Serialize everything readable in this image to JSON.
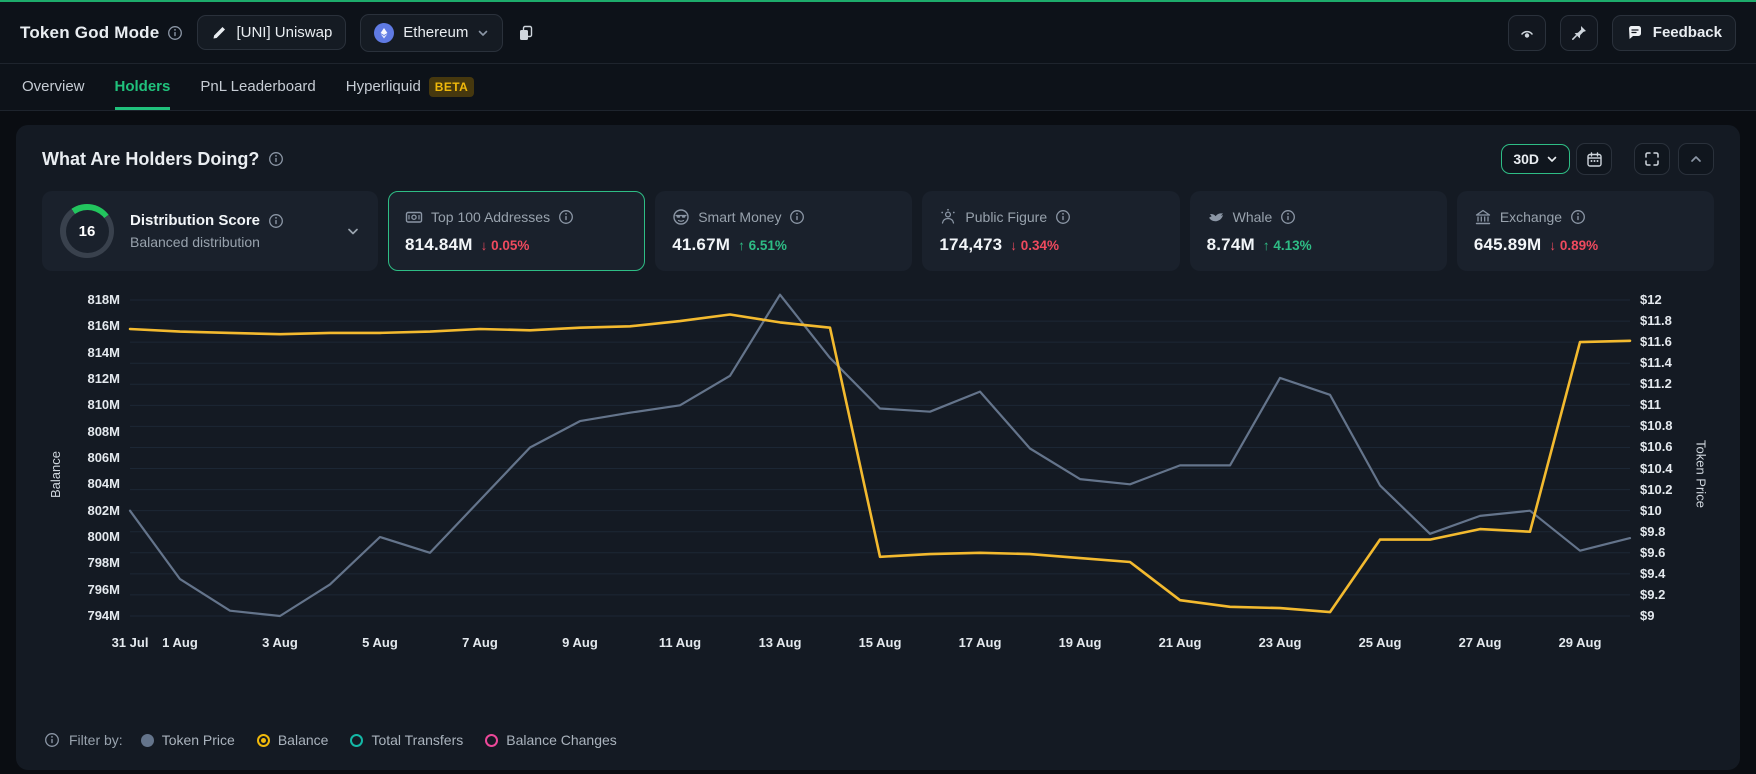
{
  "header": {
    "title": "Token God Mode",
    "token_button": "[UNI] Uniswap",
    "chain_button": "Ethereum",
    "feedback_label": "Feedback"
  },
  "tabs": [
    {
      "label": "Overview",
      "active": false,
      "badge": ""
    },
    {
      "label": "Holders",
      "active": true,
      "badge": ""
    },
    {
      "label": "PnL Leaderboard",
      "active": false,
      "badge": ""
    },
    {
      "label": "Hyperliquid",
      "active": false,
      "badge": "BETA"
    }
  ],
  "panel": {
    "title": "What Are Holders Doing?",
    "range_selector": "30D"
  },
  "stats": {
    "distribution": {
      "score": "16",
      "label": "Distribution Score",
      "sub": "Balanced distribution"
    },
    "cards": [
      {
        "icon": "wallet-icon",
        "label": "Top 100 Addresses",
        "value": "814.84M",
        "change": "0.05%",
        "direction": "down",
        "selected": true
      },
      {
        "icon": "smart-money-icon",
        "label": "Smart Money",
        "value": "41.67M",
        "change": "6.51%",
        "direction": "up",
        "selected": false
      },
      {
        "icon": "public-figure-icon",
        "label": "Public Figure",
        "value": "174,473",
        "change": "0.34%",
        "direction": "down",
        "selected": false
      },
      {
        "icon": "whale-icon",
        "label": "Whale",
        "value": "8.74M",
        "change": "4.13%",
        "direction": "up",
        "selected": false
      },
      {
        "icon": "exchange-icon",
        "label": "Exchange",
        "value": "645.89M",
        "change": "0.89%",
        "direction": "down",
        "selected": false
      }
    ]
  },
  "chart_data": {
    "type": "line",
    "x": [
      "31 Jul",
      "1 Aug",
      "2 Aug",
      "3 Aug",
      "4 Aug",
      "5 Aug",
      "6 Aug",
      "7 Aug",
      "8 Aug",
      "9 Aug",
      "10 Aug",
      "11 Aug",
      "12 Aug",
      "13 Aug",
      "14 Aug",
      "15 Aug",
      "16 Aug",
      "17 Aug",
      "18 Aug",
      "19 Aug",
      "20 Aug",
      "21 Aug",
      "22 Aug",
      "23 Aug",
      "24 Aug",
      "25 Aug",
      "26 Aug",
      "27 Aug",
      "28 Aug",
      "29 Aug",
      "30 Aug"
    ],
    "x_tick_indices": [
      0,
      1,
      3,
      5,
      7,
      9,
      11,
      13,
      15,
      17,
      19,
      21,
      23,
      25,
      27,
      29
    ],
    "x_tick_labels": [
      "31 Jul",
      "1 Aug",
      "3 Aug",
      "5 Aug",
      "7 Aug",
      "9 Aug",
      "11 Aug",
      "13 Aug",
      "15 Aug",
      "17 Aug",
      "19 Aug",
      "21 Aug",
      "23 Aug",
      "25 Aug",
      "27 Aug",
      "29 Aug"
    ],
    "left_axis": {
      "label": "Balance",
      "min": 794,
      "max": 818,
      "ticks": [
        "818M",
        "816M",
        "814M",
        "812M",
        "810M",
        "808M",
        "806M",
        "804M",
        "802M",
        "800M",
        "798M",
        "796M",
        "794M"
      ]
    },
    "right_axis": {
      "label": "Token Price",
      "min": 9,
      "max": 12,
      "ticks": [
        "$12",
        "$11.8",
        "$11.6",
        "$11.4",
        "$11.2",
        "$11",
        "$10.8",
        "$10.6",
        "$10.4",
        "$10.2",
        "$10",
        "$9.8",
        "$9.6",
        "$9.4",
        "$9.2",
        "$9"
      ]
    },
    "grid": true,
    "series": [
      {
        "name": "Token Price",
        "axis": "right",
        "color": "#64748b",
        "values": [
          10.0,
          9.35,
          9.05,
          9.0,
          9.3,
          9.75,
          9.6,
          10.1,
          10.6,
          10.85,
          10.93,
          11.0,
          11.28,
          12.05,
          11.45,
          10.97,
          10.94,
          11.13,
          10.59,
          10.3,
          10.25,
          10.43,
          10.43,
          11.26,
          11.1,
          10.24,
          9.78,
          9.95,
          10.0,
          9.62,
          9.74
        ]
      },
      {
        "name": "Balance",
        "axis": "left",
        "color": "#f3ba2f",
        "values": [
          815.8,
          815.6,
          815.5,
          815.4,
          815.5,
          815.5,
          815.6,
          815.8,
          815.7,
          815.9,
          816.0,
          816.4,
          816.9,
          816.3,
          815.9,
          798.5,
          798.7,
          798.8,
          798.7,
          798.4,
          798.1,
          795.2,
          794.7,
          794.6,
          794.3,
          799.8,
          799.8,
          800.6,
          800.4,
          814.8,
          814.9
        ]
      }
    ]
  },
  "legend": {
    "filter_label": "Filter by:",
    "items": [
      {
        "label": "Token Price",
        "color": "#64748b",
        "style": "filled"
      },
      {
        "label": "Balance",
        "color": "#f0b90b",
        "style": "dot-ring"
      },
      {
        "label": "Total Transfers",
        "color": "#14b8a6",
        "style": "ring"
      },
      {
        "label": "Balance Changes",
        "color": "#ec4899",
        "style": "ring"
      }
    ]
  },
  "colors": {
    "accent_green": "#20c17c",
    "down_red": "#ef4a5e",
    "up_green": "#2ebd85",
    "balance_line": "#f3ba2f",
    "price_line": "#64748b"
  }
}
